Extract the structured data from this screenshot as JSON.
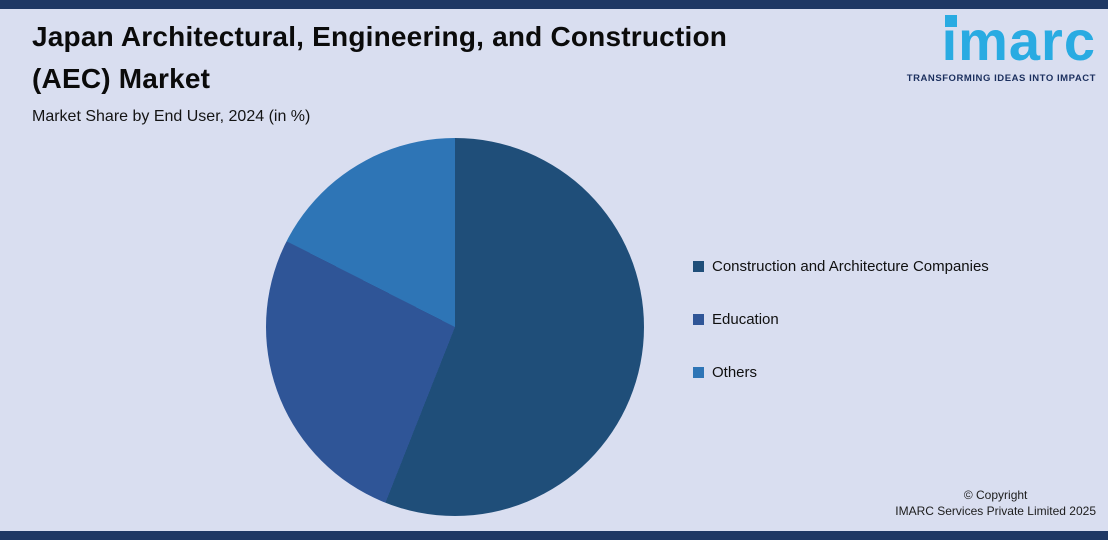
{
  "page": {
    "background": "#d9def0",
    "border_bar_color": "#1f3864"
  },
  "header": {
    "title_line1": "Japan Architectural, Engineering, and Construction",
    "title_line2": "(AEC) Market",
    "subtitle": "Market Share by End User, 2024 (in %)"
  },
  "logo": {
    "text": "imarc",
    "tagline": "TRANSFORMING IDEAS INTO IMPACT",
    "color": "#29abe2",
    "tagline_color": "#1b2f5e"
  },
  "chart_data": {
    "type": "pie",
    "title": "Japan Architectural, Engineering, and Construction (AEC) Market",
    "subtitle": "Market Share by End User, 2024 (in %)",
    "categories": [
      "Construction and Architecture Companies",
      "Education",
      "Others"
    ],
    "values": [
      56,
      26.5,
      17.5
    ],
    "colors": [
      "#1f4e79",
      "#2f5597",
      "#2e75b6"
    ],
    "units": "%",
    "legend_position": "right",
    "start_angle_deg": 0,
    "direction": "clockwise",
    "data_labels": false
  },
  "footer": {
    "line1": "© Copyright",
    "line2": "IMARC Services Private Limited 2025"
  }
}
